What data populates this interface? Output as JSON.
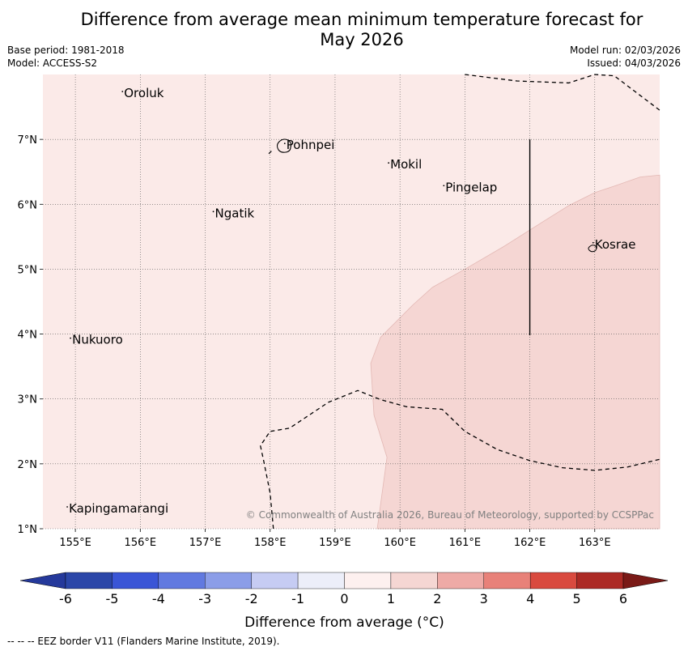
{
  "header": {
    "title_line1": "Difference from average mean minimum temperature forecast for",
    "title_line2": "May 2026",
    "base_period": "Base period: 1981-2018",
    "model": "Model: ACCESS-S2",
    "model_run": "Model run: 02/03/2026",
    "issued": "Issued: 04/03/2026"
  },
  "map": {
    "lon_range": [
      154.5,
      164.0
    ],
    "lat_range": [
      1.0,
      8.0
    ],
    "lon_ticks": [
      155,
      156,
      157,
      158,
      159,
      160,
      161,
      162,
      163
    ],
    "lon_tick_labels": [
      "155°E",
      "156°E",
      "157°E",
      "158°E",
      "159°E",
      "160°E",
      "161°E",
      "162°E",
      "163°E"
    ],
    "lat_ticks": [
      1,
      2,
      3,
      4,
      5,
      6,
      7
    ],
    "lat_tick_labels": [
      "1°N",
      "2°N",
      "3°N",
      "4°N",
      "5°N",
      "6°N",
      "7°N"
    ],
    "background_color": "#fbeae8",
    "anomaly_color": "#f5d6d3",
    "places": [
      {
        "name": "Oroluk",
        "lon": 155.75,
        "lat": 7.65
      },
      {
        "name": "Pohnpei",
        "lon": 158.25,
        "lat": 6.85
      },
      {
        "name": "Mokil",
        "lon": 159.85,
        "lat": 6.55
      },
      {
        "name": "Pingelap",
        "lon": 160.7,
        "lat": 6.2
      },
      {
        "name": "Ngatik",
        "lon": 157.15,
        "lat": 5.8
      },
      {
        "name": "Kosrae",
        "lon": 163.0,
        "lat": 5.32
      },
      {
        "name": "Nukuoro",
        "lon": 154.95,
        "lat": 3.85
      },
      {
        "name": "Kapingamarangi",
        "lon": 154.9,
        "lat": 1.25
      }
    ],
    "copyright": "© Commonwealth of Australia 2026, Bureau of Meteorology, supported by CCSPPac"
  },
  "colorbar": {
    "label": "Difference from average (°C)",
    "ticks": [
      "-6",
      "-5",
      "-4",
      "-3",
      "-2",
      "-1",
      "0",
      "1",
      "2",
      "3",
      "4",
      "5",
      "6"
    ],
    "colors": [
      "#25399b",
      "#2b46a8",
      "#3a55d6",
      "#6179e0",
      "#8b9de8",
      "#c6ccf3",
      "#eceef9",
      "#fdf0ef",
      "#f5d6d3",
      "#eeaaa6",
      "#e88179",
      "#d94a3f",
      "#ac2a25",
      "#7a1a17"
    ]
  },
  "footnote": "--  --  -- EEZ border V11 (Flanders Marine Institute, 2019)."
}
